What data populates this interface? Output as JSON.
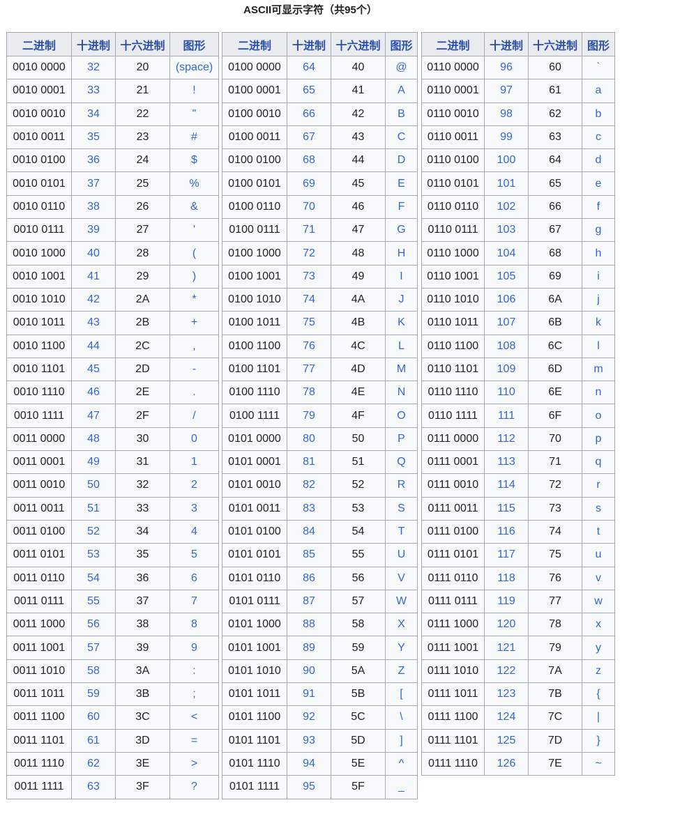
{
  "title": "ASCII可显示字符（共95个）",
  "headers": [
    "二进制",
    "十进制",
    "十六进制",
    "图形"
  ],
  "colors": {
    "header_bg": "#eaecf0",
    "cell_bg": "#f8f9fa",
    "border": "#a2a9b1",
    "link": "#3366cc"
  },
  "tables": [
    [
      [
        "0010 0000",
        "32",
        "20",
        "(space)"
      ],
      [
        "0010 0001",
        "33",
        "21",
        "!"
      ],
      [
        "0010 0010",
        "34",
        "22",
        "\""
      ],
      [
        "0010 0011",
        "35",
        "23",
        "#"
      ],
      [
        "0010 0100",
        "36",
        "24",
        "$"
      ],
      [
        "0010 0101",
        "37",
        "25",
        "%"
      ],
      [
        "0010 0110",
        "38",
        "26",
        "&"
      ],
      [
        "0010 0111",
        "39",
        "27",
        "'"
      ],
      [
        "0010 1000",
        "40",
        "28",
        "("
      ],
      [
        "0010 1001",
        "41",
        "29",
        ")"
      ],
      [
        "0010 1010",
        "42",
        "2A",
        "*"
      ],
      [
        "0010 1011",
        "43",
        "2B",
        "+"
      ],
      [
        "0010 1100",
        "44",
        "2C",
        ","
      ],
      [
        "0010 1101",
        "45",
        "2D",
        "-"
      ],
      [
        "0010 1110",
        "46",
        "2E",
        "."
      ],
      [
        "0010 1111",
        "47",
        "2F",
        "/"
      ],
      [
        "0011 0000",
        "48",
        "30",
        "0"
      ],
      [
        "0011 0001",
        "49",
        "31",
        "1"
      ],
      [
        "0011 0010",
        "50",
        "32",
        "2"
      ],
      [
        "0011 0011",
        "51",
        "33",
        "3"
      ],
      [
        "0011 0100",
        "52",
        "34",
        "4"
      ],
      [
        "0011 0101",
        "53",
        "35",
        "5"
      ],
      [
        "0011 0110",
        "54",
        "36",
        "6"
      ],
      [
        "0011 0111",
        "55",
        "37",
        "7"
      ],
      [
        "0011 1000",
        "56",
        "38",
        "8"
      ],
      [
        "0011 1001",
        "57",
        "39",
        "9"
      ],
      [
        "0011 1010",
        "58",
        "3A",
        ":"
      ],
      [
        "0011 1011",
        "59",
        "3B",
        ";"
      ],
      [
        "0011 1100",
        "60",
        "3C",
        "<"
      ],
      [
        "0011 1101",
        "61",
        "3D",
        "="
      ],
      [
        "0011 1110",
        "62",
        "3E",
        ">"
      ],
      [
        "0011 1111",
        "63",
        "3F",
        "?"
      ]
    ],
    [
      [
        "0100 0000",
        "64",
        "40",
        "@"
      ],
      [
        "0100 0001",
        "65",
        "41",
        "A"
      ],
      [
        "0100 0010",
        "66",
        "42",
        "B"
      ],
      [
        "0100 0011",
        "67",
        "43",
        "C"
      ],
      [
        "0100 0100",
        "68",
        "44",
        "D"
      ],
      [
        "0100 0101",
        "69",
        "45",
        "E"
      ],
      [
        "0100 0110",
        "70",
        "46",
        "F"
      ],
      [
        "0100 0111",
        "71",
        "47",
        "G"
      ],
      [
        "0100 1000",
        "72",
        "48",
        "H"
      ],
      [
        "0100 1001",
        "73",
        "49",
        "I"
      ],
      [
        "0100 1010",
        "74",
        "4A",
        "J"
      ],
      [
        "0100 1011",
        "75",
        "4B",
        "K"
      ],
      [
        "0100 1100",
        "76",
        "4C",
        "L"
      ],
      [
        "0100 1101",
        "77",
        "4D",
        "M"
      ],
      [
        "0100 1110",
        "78",
        "4E",
        "N"
      ],
      [
        "0100 1111",
        "79",
        "4F",
        "O"
      ],
      [
        "0101 0000",
        "80",
        "50",
        "P"
      ],
      [
        "0101 0001",
        "81",
        "51",
        "Q"
      ],
      [
        "0101 0010",
        "82",
        "52",
        "R"
      ],
      [
        "0101 0011",
        "83",
        "53",
        "S"
      ],
      [
        "0101 0100",
        "84",
        "54",
        "T"
      ],
      [
        "0101 0101",
        "85",
        "55",
        "U"
      ],
      [
        "0101 0110",
        "86",
        "56",
        "V"
      ],
      [
        "0101 0111",
        "87",
        "57",
        "W"
      ],
      [
        "0101 1000",
        "88",
        "58",
        "X"
      ],
      [
        "0101 1001",
        "89",
        "59",
        "Y"
      ],
      [
        "0101 1010",
        "90",
        "5A",
        "Z"
      ],
      [
        "0101 1011",
        "91",
        "5B",
        "["
      ],
      [
        "0101 1100",
        "92",
        "5C",
        "\\"
      ],
      [
        "0101 1101",
        "93",
        "5D",
        "]"
      ],
      [
        "0101 1110",
        "94",
        "5E",
        "^"
      ],
      [
        "0101 1111",
        "95",
        "5F",
        "_"
      ]
    ],
    [
      [
        "0110 0000",
        "96",
        "60",
        "`"
      ],
      [
        "0110 0001",
        "97",
        "61",
        "a"
      ],
      [
        "0110 0010",
        "98",
        "62",
        "b"
      ],
      [
        "0110 0011",
        "99",
        "63",
        "c"
      ],
      [
        "0110 0100",
        "100",
        "64",
        "d"
      ],
      [
        "0110 0101",
        "101",
        "65",
        "e"
      ],
      [
        "0110 0110",
        "102",
        "66",
        "f"
      ],
      [
        "0110 0111",
        "103",
        "67",
        "g"
      ],
      [
        "0110 1000",
        "104",
        "68",
        "h"
      ],
      [
        "0110 1001",
        "105",
        "69",
        "i"
      ],
      [
        "0110 1010",
        "106",
        "6A",
        "j"
      ],
      [
        "0110 1011",
        "107",
        "6B",
        "k"
      ],
      [
        "0110 1100",
        "108",
        "6C",
        "l"
      ],
      [
        "0110 1101",
        "109",
        "6D",
        "m"
      ],
      [
        "0110 1110",
        "110",
        "6E",
        "n"
      ],
      [
        "0110 1111",
        "111",
        "6F",
        "o"
      ],
      [
        "0111 0000",
        "112",
        "70",
        "p"
      ],
      [
        "0111 0001",
        "113",
        "71",
        "q"
      ],
      [
        "0111 0010",
        "114",
        "72",
        "r"
      ],
      [
        "0111 0011",
        "115",
        "73",
        "s"
      ],
      [
        "0111 0100",
        "116",
        "74",
        "t"
      ],
      [
        "0111 0101",
        "117",
        "75",
        "u"
      ],
      [
        "0111 0110",
        "118",
        "76",
        "v"
      ],
      [
        "0111 0111",
        "119",
        "77",
        "w"
      ],
      [
        "0111 1000",
        "120",
        "78",
        "x"
      ],
      [
        "0111 1001",
        "121",
        "79",
        "y"
      ],
      [
        "0111 1010",
        "122",
        "7A",
        "z"
      ],
      [
        "0111 1011",
        "123",
        "7B",
        "{"
      ],
      [
        "0111 1100",
        "124",
        "7C",
        "|"
      ],
      [
        "0111 1101",
        "125",
        "7D",
        "}"
      ],
      [
        "0111 1110",
        "126",
        "7E",
        "~"
      ]
    ]
  ]
}
